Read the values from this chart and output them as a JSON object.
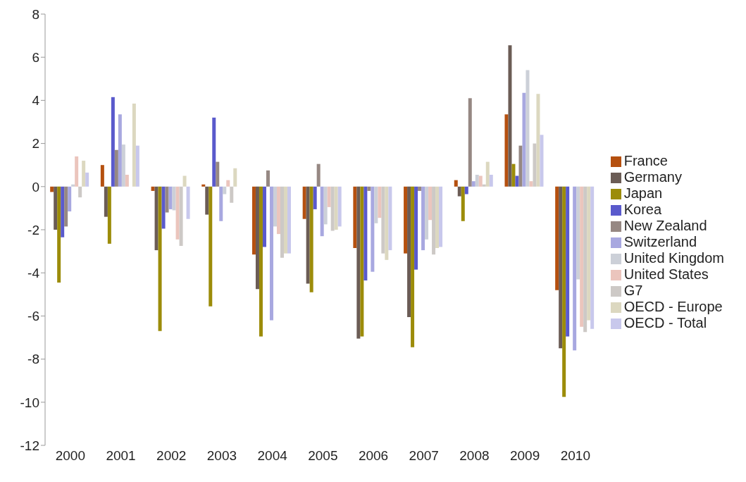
{
  "chart_data": {
    "type": "bar",
    "categories": [
      "2000",
      "2001",
      "2002",
      "2003",
      "2004",
      "2005",
      "2006",
      "2007",
      "2008",
      "2009",
      "2010"
    ],
    "series": [
      {
        "name": "France",
        "color": "#b5500f",
        "values": [
          -0.25,
          1.0,
          -0.2,
          0.1,
          -3.15,
          -1.5,
          -2.85,
          -3.1,
          0.3,
          3.35,
          -4.8
        ]
      },
      {
        "name": "Germany",
        "color": "#6b5c55",
        "values": [
          -2.0,
          -1.4,
          -2.95,
          -1.3,
          -4.75,
          -4.5,
          -7.05,
          -6.05,
          -0.45,
          6.55,
          -7.5
        ]
      },
      {
        "name": "Japan",
        "color": "#9c8c0a",
        "values": [
          -4.45,
          -2.65,
          -6.7,
          -5.55,
          -6.95,
          -4.9,
          -6.95,
          -7.45,
          -1.6,
          1.05,
          -9.75
        ]
      },
      {
        "name": "Korea",
        "color": "#5a5acc",
        "values": [
          -2.35,
          4.15,
          -1.95,
          3.2,
          -2.8,
          -1.05,
          -4.35,
          -3.85,
          -0.35,
          0.5,
          -6.95
        ]
      },
      {
        "name": "New Zealand",
        "color": "#968883",
        "values": [
          -1.85,
          1.7,
          -1.2,
          1.15,
          0.75,
          1.05,
          -0.2,
          -0.2,
          4.1,
          1.9,
          0
        ]
      },
      {
        "name": "Switzerland",
        "color": "#a8a8e0",
        "values": [
          -1.15,
          3.35,
          -1.05,
          -1.6,
          -6.2,
          -2.3,
          -3.95,
          -2.95,
          0.25,
          4.35,
          -7.6
        ]
      },
      {
        "name": "United Kingdom",
        "color": "#ccd0d8",
        "values": [
          0.1,
          1.95,
          -1.1,
          -0.35,
          -1.85,
          -1.75,
          -1.7,
          -2.45,
          0.55,
          5.4,
          -4.3
        ]
      },
      {
        "name": "United States",
        "color": "#ebc5bd",
        "values": [
          1.4,
          0.55,
          -2.45,
          0.3,
          -2.2,
          -0.95,
          -1.45,
          -1.55,
          0.5,
          0.25,
          -6.5
        ]
      },
      {
        "name": "G7",
        "color": "#cdc9c6",
        "values": [
          -0.5,
          0,
          -2.75,
          -0.75,
          -3.3,
          -2.05,
          -3.1,
          -3.15,
          0.1,
          2.0,
          -6.75
        ]
      },
      {
        "name": "OECD - Europe",
        "color": "#dcd8c0",
        "values": [
          1.2,
          3.85,
          0.5,
          0.85,
          -3.1,
          -2.0,
          -3.4,
          -2.85,
          1.15,
          4.3,
          -6.2
        ]
      },
      {
        "name": "OECD - Total",
        "color": "#c8c8ec",
        "values": [
          0.65,
          1.9,
          -1.5,
          0,
          -3.1,
          -1.85,
          -2.95,
          -2.8,
          0.55,
          2.4,
          -6.6
        ]
      }
    ],
    "ylim": [
      -12,
      8
    ],
    "yticks": [
      -12,
      -10,
      -8,
      -6,
      -4,
      -2,
      0,
      2,
      4,
      6,
      8
    ],
    "grid": false,
    "legend": "right"
  }
}
